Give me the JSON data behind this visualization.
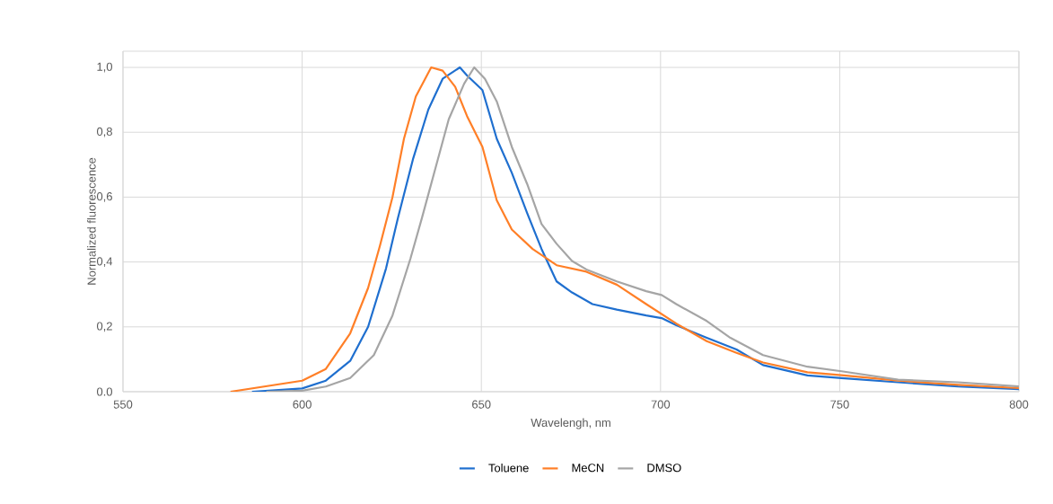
{
  "chart_data": {
    "type": "line",
    "xlabel": "Wavelengh, nm",
    "ylabel": "Normalized fluorescence",
    "xlim": [
      550,
      800
    ],
    "ylim": [
      0,
      1.05
    ],
    "xticks": [
      550,
      600,
      650,
      700,
      750,
      800
    ],
    "yticks": [
      {
        "value": 0,
        "label": "0.0"
      },
      {
        "value": 0.2,
        "label": "0,2"
      },
      {
        "value": 0.4,
        "label": "0,4"
      },
      {
        "value": 0.6,
        "label": "0,6"
      },
      {
        "value": 0.8,
        "label": "0,8"
      },
      {
        "value": 1.0,
        "label": "1,0"
      }
    ],
    "grid": true,
    "legend": "bottom",
    "marker": "none",
    "line_style": "solid",
    "series": [
      {
        "name": "Toluene",
        "color": "#1f6fcf",
        "x": [
          586,
          600,
          606.6,
          613.4,
          618.4,
          623.4,
          626.7,
          631,
          635.2,
          639.2,
          644,
          646,
          650.3,
          654.3,
          658.5,
          662.8,
          666.8,
          671,
          675.3,
          681,
          687.8,
          696,
          700.3,
          704.4,
          712.9,
          721.2,
          728.6,
          741,
          750.5,
          766.3,
          783,
          800
        ],
        "values": [
          0,
          0.01,
          0.034,
          0.095,
          0.2,
          0.38,
          0.535,
          0.72,
          0.87,
          0.965,
          1.0,
          0.975,
          0.93,
          0.78,
          0.675,
          0.55,
          0.44,
          0.34,
          0.306,
          0.27,
          0.253,
          0.235,
          0.227,
          0.205,
          0.166,
          0.13,
          0.082,
          0.05,
          0.042,
          0.029,
          0.016,
          0.008
        ]
      },
      {
        "name": "MeCN",
        "color": "#ff7f27",
        "x": [
          580,
          600,
          606.6,
          613.4,
          618.4,
          621.7,
          625.2,
          628.4,
          631.7,
          636,
          639.2,
          642.7,
          646,
          650.3,
          654.3,
          658.5,
          664.3,
          671,
          679.3,
          687.8,
          696,
          704.4,
          712.9,
          721.2,
          728.6,
          741,
          750.5,
          766.3,
          783,
          800
        ],
        "values": [
          0,
          0.034,
          0.07,
          0.18,
          0.32,
          0.45,
          0.6,
          0.78,
          0.91,
          1.0,
          0.99,
          0.94,
          0.85,
          0.755,
          0.59,
          0.5,
          0.44,
          0.39,
          0.37,
          0.33,
          0.27,
          0.21,
          0.156,
          0.12,
          0.09,
          0.06,
          0.051,
          0.034,
          0.021,
          0.011
        ]
      },
      {
        "name": "DMSO",
        "color": "#a5a5a5",
        "x": [
          590,
          600,
          606.6,
          613.4,
          620,
          625.2,
          630.2,
          633.4,
          637.7,
          640.9,
          645.2,
          648,
          651,
          654.3,
          658.5,
          662.8,
          666.8,
          671,
          675.3,
          679.3,
          687.8,
          696,
          700.3,
          704.4,
          712.9,
          719.5,
          728.6,
          741,
          750.5,
          766.3,
          783,
          800
        ],
        "values": [
          0,
          0.003,
          0.016,
          0.042,
          0.113,
          0.235,
          0.41,
          0.535,
          0.71,
          0.84,
          0.95,
          1.0,
          0.965,
          0.895,
          0.755,
          0.64,
          0.517,
          0.456,
          0.403,
          0.377,
          0.34,
          0.31,
          0.298,
          0.27,
          0.218,
          0.166,
          0.113,
          0.077,
          0.063,
          0.037,
          0.029,
          0.016
        ]
      }
    ]
  }
}
